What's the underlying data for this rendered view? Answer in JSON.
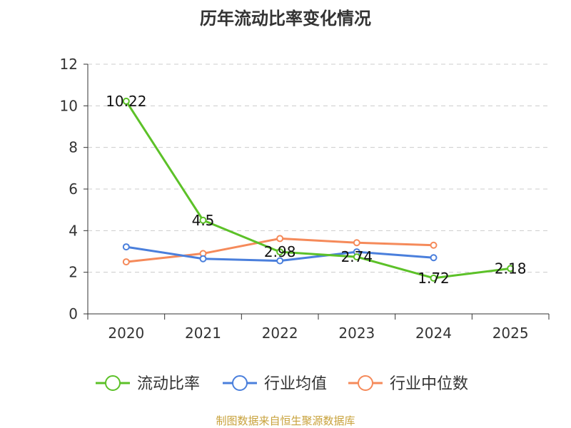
{
  "chart_data": {
    "type": "line",
    "title": "历年流动比率变化情况",
    "categories": [
      "2020",
      "2021",
      "2022",
      "2023",
      "2024",
      "2025"
    ],
    "y_ticks": [
      "0",
      "2",
      "4",
      "6",
      "8",
      "10",
      "12"
    ],
    "ylim": [
      0,
      12
    ],
    "grid": true,
    "legend_position": "bottom",
    "series": [
      {
        "name": "流动比率",
        "color": "#5cc128",
        "values": [
          10.22,
          4.5,
          2.98,
          2.74,
          1.72,
          2.18
        ],
        "labels": [
          "10.22",
          "4.5",
          "2.98",
          "2.74",
          "1.72",
          "2.18"
        ]
      },
      {
        "name": "行业均值",
        "color": "#4a7fdc",
        "values": [
          3.22,
          2.65,
          2.55,
          2.98,
          2.7,
          null
        ]
      },
      {
        "name": "行业中位数",
        "color": "#f58a5a",
        "values": [
          2.5,
          2.9,
          3.62,
          3.42,
          3.3,
          null
        ]
      }
    ]
  },
  "source_text": "制图数据来自恒生聚源数据库"
}
